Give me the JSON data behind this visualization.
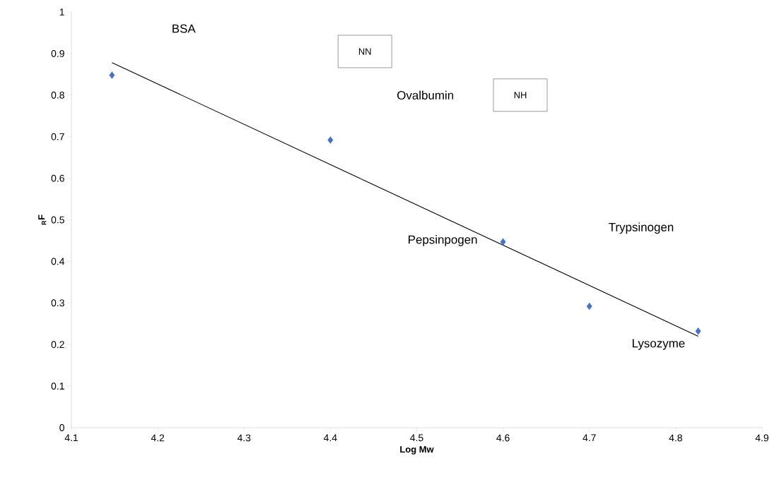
{
  "chart_data": {
    "type": "scatter",
    "xlabel": "Log Mw",
    "ylabel": "$_{R}$F",
    "xlim": [
      4.1,
      4.9
    ],
    "xticks": [
      4.1,
      4.2,
      4.3,
      4.4,
      4.5,
      4.6,
      4.7,
      4.8,
      4.9
    ],
    "ylim": [
      0,
      1
    ],
    "yticks": [
      0,
      0.1,
      0.2,
      0.3,
      0.4,
      0.5,
      0.6,
      0.7,
      0.8,
      0.9,
      1
    ],
    "grid": false,
    "series": [
      {
        "marker": "diamond",
        "color": "#4472c4",
        "x": [
          4.147,
          4.4,
          4.6,
          4.7,
          4.826
        ],
        "values": [
          0.848,
          0.692,
          0.447,
          0.292,
          0.232
        ]
      },
      {
        "type": "line",
        "color": "#000000",
        "x": [
          4.147,
          4.826
        ],
        "values": [
          0.878,
          0.22
        ]
      }
    ],
    "annotations": [
      "BSA",
      "Ovalbumin",
      "Pepsinpogen",
      "Trypsinogen",
      "Lysozyme",
      "NN",
      "NH"
    ]
  }
}
